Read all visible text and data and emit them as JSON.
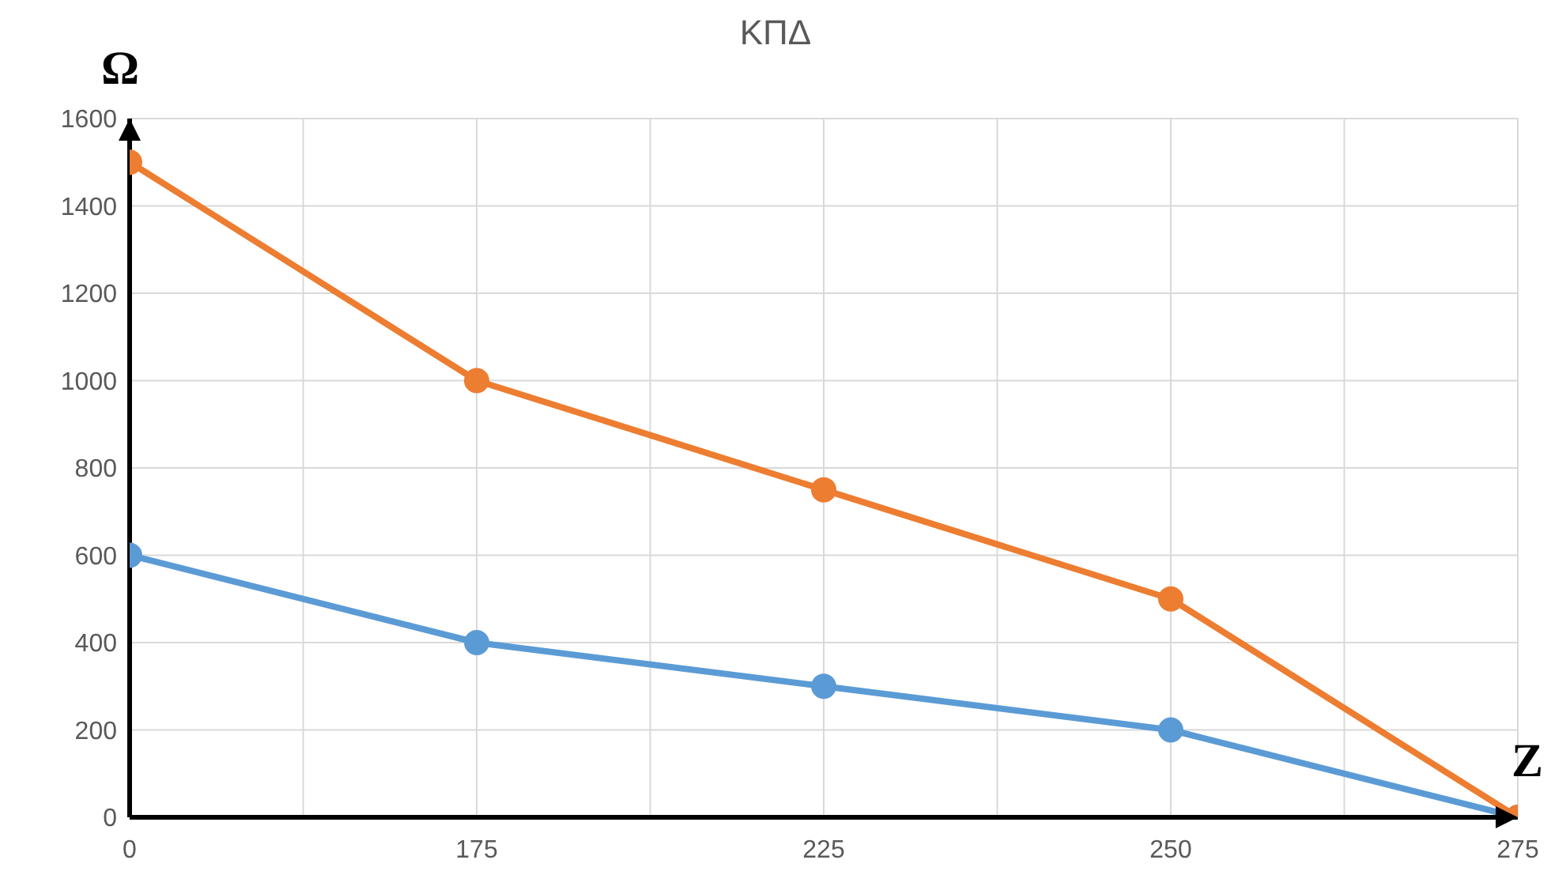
{
  "chart_data": {
    "type": "line",
    "title": "ΚΠΔ",
    "xlabel": "Z",
    "ylabel": "Ω",
    "categories": [
      "0",
      "175",
      "225",
      "250",
      "275"
    ],
    "series": [
      {
        "color": "#5b9bd5",
        "values": [
          600,
          400,
          300,
          200,
          0
        ]
      },
      {
        "color": "#ed7d31",
        "values": [
          1500,
          1000,
          750,
          500,
          0
        ]
      }
    ],
    "ylim": [
      0,
      1600
    ],
    "yticks": [
      0,
      200,
      400,
      600,
      800,
      1000,
      1200,
      1400,
      1600
    ],
    "grid": true,
    "marker": "circle",
    "line_style": "solid",
    "legend": false
  }
}
